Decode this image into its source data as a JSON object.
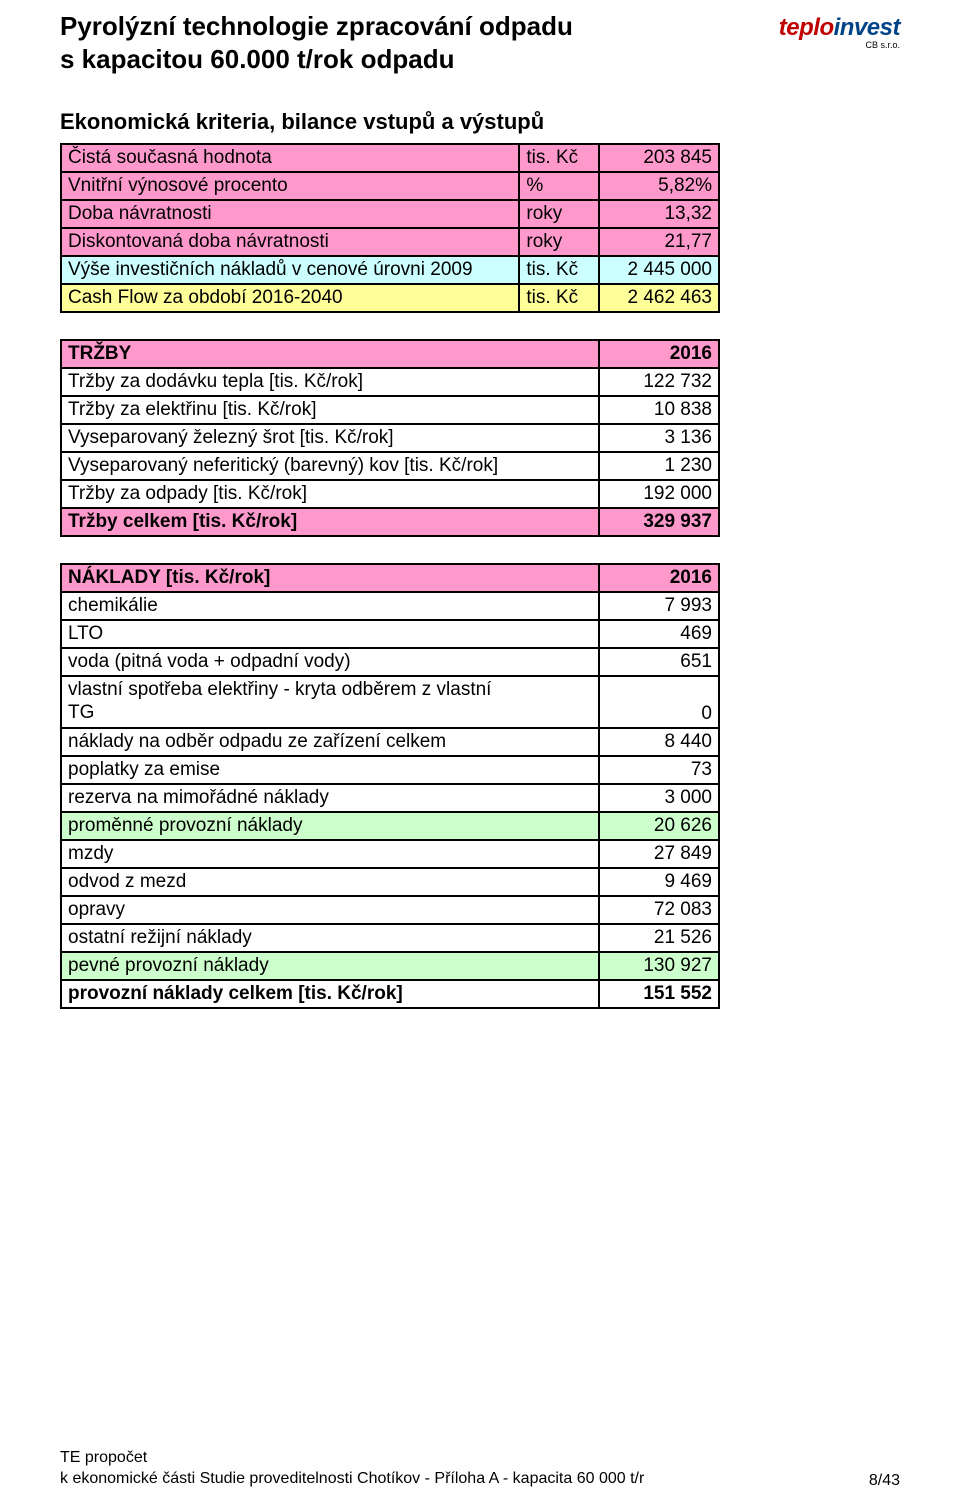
{
  "header": {
    "title_line1": "Pyrolýzní technologie zpracování odpadu",
    "title_line2": "s kapacitou 60.000 t/rok odpadu",
    "logo_text1": "teplo",
    "logo_text2": "invest",
    "logo_sub": "CB    s.r.o.",
    "logo_color1": "#c00000",
    "logo_color2": "#004488"
  },
  "section_titles": {
    "criteria": "Ekonomická kriteria, bilance vstupů a výstupů"
  },
  "criteria": {
    "rows": [
      {
        "label": "Čistá současná hodnota",
        "unit": "tis. Kč",
        "value": "203 845",
        "bg": "bg-pink"
      },
      {
        "label": "Vnitřní výnosové procento",
        "unit": "%",
        "value": "5,82%",
        "bg": "bg-pink"
      },
      {
        "label": "Doba návratnosti",
        "unit": "roky",
        "value": "13,32",
        "bg": "bg-pink"
      },
      {
        "label": "Diskontovaná doba návratnosti",
        "unit": "roky",
        "value": "21,77",
        "bg": "bg-pink"
      },
      {
        "label": "Výše investičních nákladů v cenové úrovni 2009",
        "unit": "tis. Kč",
        "value": "2 445 000",
        "bg": "bg-blue"
      },
      {
        "label": "Cash Flow za období 2016-2040",
        "unit": "tis. Kč",
        "value": "2 462 463",
        "bg": "bg-yellow"
      }
    ]
  },
  "trzby": {
    "header": {
      "label": "TRŽBY",
      "value": "2016"
    },
    "rows": [
      {
        "label": "Tržby za dodávku tepla [tis. Kč/rok]",
        "value": "122 732"
      },
      {
        "label": "Tržby za elektřinu [tis. Kč/rok]",
        "value": "10 838"
      },
      {
        "label": "Vyseparovaný železný šrot [tis. Kč/rok]",
        "value": "3 136"
      },
      {
        "label": "Vyseparovaný neferitický (barevný) kov [tis. Kč/rok]",
        "value": "1 230"
      },
      {
        "label": "Tržby za odpady [tis. Kč/rok]",
        "value": "192 000"
      }
    ],
    "total": {
      "label": "Tržby celkem   [tis. Kč/rok]",
      "value": "329 937"
    }
  },
  "naklady": {
    "header": {
      "label": "NÁKLADY  [tis. Kč/rok]",
      "value": "2016"
    },
    "rows": [
      {
        "label": "chemikálie",
        "value": "7 993",
        "bg": ""
      },
      {
        "label": "LTO",
        "value": "469",
        "bg": ""
      },
      {
        "label": "voda (pitná voda + odpadní vody)",
        "value": "651",
        "bg": ""
      },
      {
        "label": "vlastní spotřeba elektřiny - kryta odběrem z vlastní TG",
        "value": "0",
        "bg": "",
        "twoLine": true,
        "line1": "vlastní spotřeba elektřiny - kryta odběrem z vlastní",
        "line2": "TG"
      },
      {
        "label": "náklady na odběr odpadu ze zařízení celkem",
        "value": "8 440",
        "bg": ""
      },
      {
        "label": "poplatky za emise",
        "value": "73",
        "bg": ""
      },
      {
        "label": "rezerva na mimořádné náklady",
        "value": "3 000",
        "bg": ""
      },
      {
        "label": "proměnné provozní náklady",
        "value": "20 626",
        "bg": "bg-green"
      },
      {
        "label": "mzdy",
        "value": "27 849",
        "bg": ""
      },
      {
        "label": "odvod z mezd",
        "value": "9 469",
        "bg": ""
      },
      {
        "label": "opravy",
        "value": "72 083",
        "bg": ""
      },
      {
        "label": "ostatní režijní náklady",
        "value": "21 526",
        "bg": ""
      },
      {
        "label": "pevné provozní náklady",
        "value": "130 927",
        "bg": "bg-green"
      }
    ],
    "total": {
      "label": "provozní náklady celkem [tis. Kč/rok]",
      "value": "151 552"
    }
  },
  "footer": {
    "line1": "TE propočet",
    "line2": "k ekonomické části Studie proveditelnosti Chotíkov - Příloha A - kapacita 60 000 t/r",
    "page": "8/43"
  },
  "colors": {
    "pink": "#ff99cc",
    "blue": "#ccffff",
    "yellow": "#ffff99",
    "green": "#ccffcc"
  }
}
